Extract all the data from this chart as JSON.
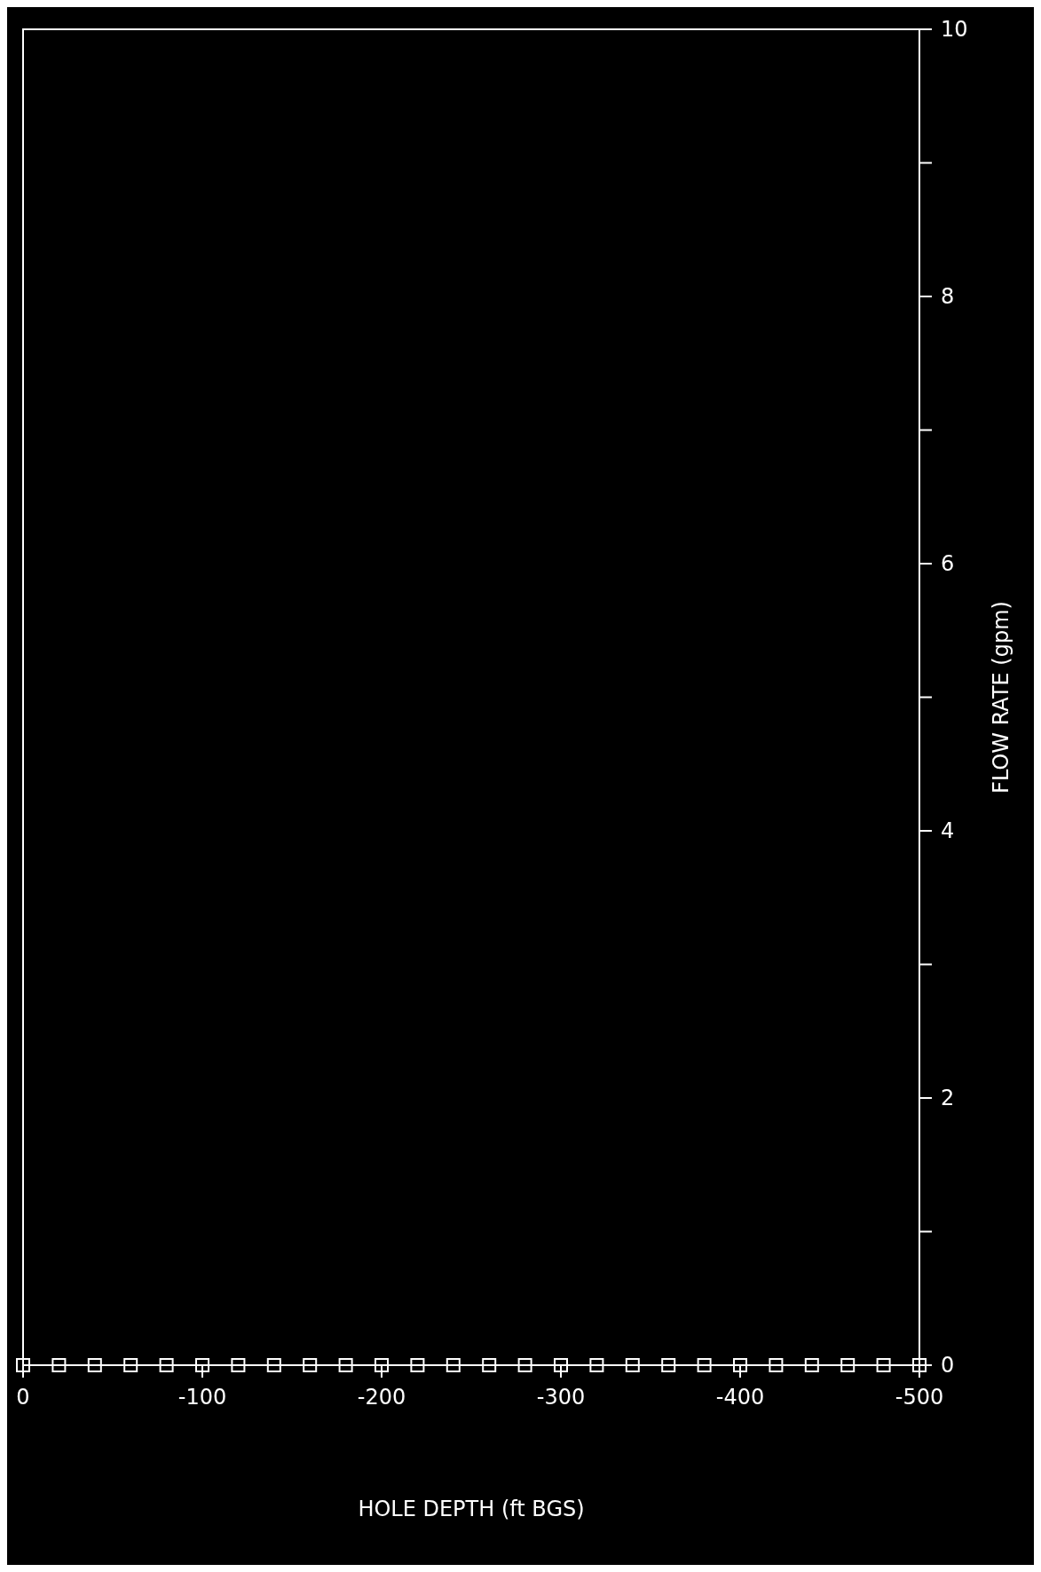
{
  "chart_data": {
    "type": "scatter",
    "xlabel": "HOLE DEPTH (ft BGS)",
    "ylabel": "FLOW RATE (gpm)",
    "x": [
      0,
      -20,
      -40,
      -60,
      -80,
      -100,
      -120,
      -140,
      -160,
      -180,
      -200,
      -220,
      -240,
      -260,
      -280,
      -300,
      -320,
      -340,
      -360,
      -380,
      -400,
      -420,
      -440,
      -460,
      -480,
      -500
    ],
    "series": [
      {
        "color": "#ffffff",
        "values": [
          0,
          0,
          0,
          0,
          0,
          0,
          0,
          0,
          0,
          0,
          0,
          0,
          0,
          0,
          0,
          0,
          0,
          0,
          0,
          0,
          0,
          0,
          0,
          0,
          0,
          0
        ]
      }
    ],
    "xlim": [
      0,
      -500
    ],
    "xticks": [
      0,
      -100,
      -200,
      -300,
      -400,
      -500
    ],
    "ylim": [
      0,
      10
    ],
    "yticks": [
      0,
      {
        "value": 1,
        "label": null
      },
      2,
      {
        "value": 3,
        "label": null
      },
      4,
      {
        "value": 5,
        "label": null
      },
      6,
      {
        "value": 7,
        "label": null
      },
      8,
      {
        "value": 9,
        "label": null
      },
      10
    ],
    "grid": false,
    "marker": "square"
  }
}
